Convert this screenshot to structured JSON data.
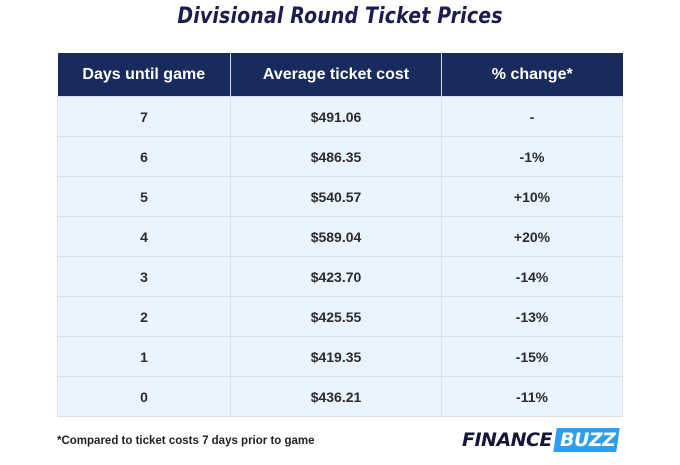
{
  "title": "Divisional Round Ticket Prices",
  "table": {
    "headers": [
      "Days until game",
      "Average ticket cost",
      "% change*"
    ],
    "rows": [
      [
        "7",
        "$491.06",
        "-"
      ],
      [
        "6",
        "$486.35",
        "-1%"
      ],
      [
        "5",
        "$540.57",
        "+10%"
      ],
      [
        "4",
        "$589.04",
        "+20%"
      ],
      [
        "3",
        "$423.70",
        "-14%"
      ],
      [
        "2",
        "$425.55",
        "-13%"
      ],
      [
        "1",
        "$419.35",
        "-15%"
      ],
      [
        "0",
        "$436.21",
        "-11%"
      ]
    ]
  },
  "footnote": "*Compared to ticket costs 7 days prior to game",
  "logo": {
    "part1": "FINANCE",
    "part2": "BUZZ"
  },
  "colors": {
    "title": "#1e1b4f",
    "header_bg": "#192a5c",
    "row_bg": "#eaf4fe",
    "logo_accent": "#2e9ff0"
  },
  "chart_data": {
    "type": "table",
    "title": "Divisional Round Ticket Prices",
    "columns": [
      "Days until game",
      "Average ticket cost",
      "% change*"
    ],
    "rows": [
      {
        "days_until_game": 7,
        "average_ticket_cost": 491.06,
        "pct_change": null
      },
      {
        "days_until_game": 6,
        "average_ticket_cost": 486.35,
        "pct_change": -1
      },
      {
        "days_until_game": 5,
        "average_ticket_cost": 540.57,
        "pct_change": 10
      },
      {
        "days_until_game": 4,
        "average_ticket_cost": 589.04,
        "pct_change": 20
      },
      {
        "days_until_game": 3,
        "average_ticket_cost": 423.7,
        "pct_change": -14
      },
      {
        "days_until_game": 2,
        "average_ticket_cost": 425.55,
        "pct_change": -13
      },
      {
        "days_until_game": 1,
        "average_ticket_cost": 419.35,
        "pct_change": -15
      },
      {
        "days_until_game": 0,
        "average_ticket_cost": 436.21,
        "pct_change": -11
      }
    ],
    "annotations": [
      "*Compared to ticket costs 7 days prior to game"
    ]
  }
}
